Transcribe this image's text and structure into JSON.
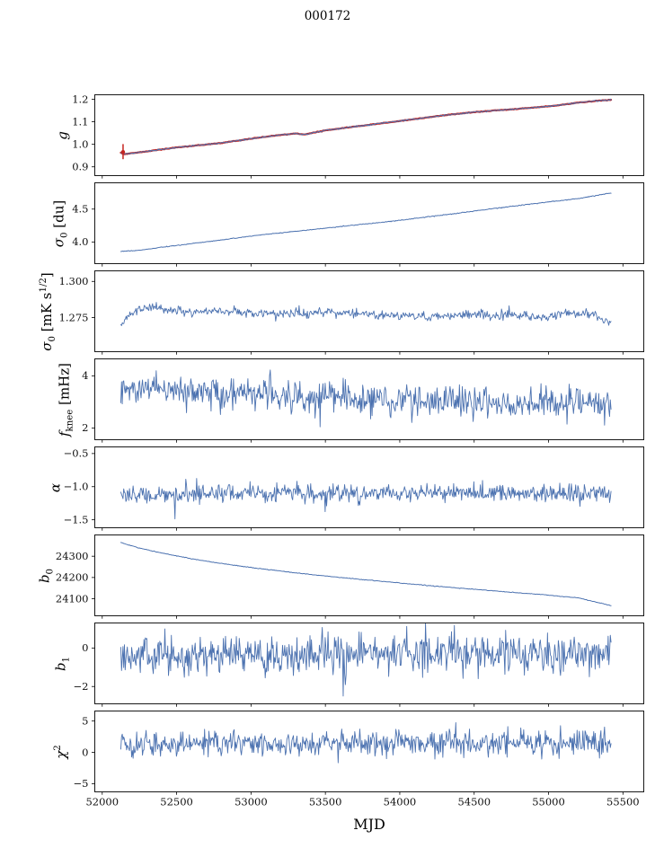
{
  "chart_data": {
    "type": "line",
    "title": "000172",
    "xlabel": "MJD",
    "xlim": [
      51950,
      55640
    ],
    "x_data_range": [
      52125,
      55420
    ],
    "grid": false,
    "legend": "none",
    "colors": {
      "data_line": "#4c72b0",
      "fit_line": "#c62420",
      "axis": "#000000"
    },
    "xticks": [
      {
        "v": 52000,
        "label": "52000"
      },
      {
        "v": 52500,
        "label": "52500"
      },
      {
        "v": 53000,
        "label": "53000"
      },
      {
        "v": 53500,
        "label": "53500"
      },
      {
        "v": 54000,
        "label": "54000"
      },
      {
        "v": 54500,
        "label": "54500"
      },
      {
        "v": 55000,
        "label": "55000"
      },
      {
        "v": 55500,
        "label": "55500"
      }
    ],
    "panels": [
      {
        "name": "g",
        "ylabel_parts": [
          {
            "text": "g",
            "style": "italic"
          }
        ],
        "ylim": [
          0.861,
          1.22
        ],
        "yticks": [
          {
            "v": 0.9,
            "label": "0.9"
          },
          {
            "v": 1.0,
            "label": "1.0"
          },
          {
            "v": 1.1,
            "label": "1.1"
          },
          {
            "v": 1.2,
            "label": "1.2"
          }
        ],
        "series": [
          {
            "name": "gain-fit",
            "color": "#c62420",
            "width": 2.2,
            "seed": 7,
            "n": 450,
            "noise": 0.0006,
            "keypoints": [
              [
                52125,
                0.963
              ],
              [
                52148,
                0.956
              ],
              [
                52175,
                0.959
              ],
              [
                52250,
                0.964
              ],
              [
                52350,
                0.973
              ],
              [
                52500,
                0.986
              ],
              [
                52650,
                0.996
              ],
              [
                52800,
                1.006
              ],
              [
                53000,
                1.025
              ],
              [
                53150,
                1.038
              ],
              [
                53300,
                1.048
              ],
              [
                53360,
                1.044
              ],
              [
                53500,
                1.062
              ],
              [
                53700,
                1.079
              ],
              [
                53900,
                1.095
              ],
              [
                54100,
                1.112
              ],
              [
                54300,
                1.129
              ],
              [
                54500,
                1.143
              ],
              [
                54700,
                1.153
              ],
              [
                54900,
                1.163
              ],
              [
                55050,
                1.172
              ],
              [
                55200,
                1.185
              ],
              [
                55320,
                1.193
              ],
              [
                55420,
                1.1975
              ]
            ]
          },
          {
            "name": "gain-data",
            "color": "#4c72b0",
            "width": 1.0,
            "seed": 8,
            "n": 650,
            "noise": 0.0015,
            "keypoints": [
              [
                52125,
                0.963
              ],
              [
                52148,
                0.956
              ],
              [
                52175,
                0.959
              ],
              [
                52250,
                0.964
              ],
              [
                52350,
                0.973
              ],
              [
                52500,
                0.986
              ],
              [
                52650,
                0.996
              ],
              [
                52800,
                1.006
              ],
              [
                53000,
                1.025
              ],
              [
                53150,
                1.038
              ],
              [
                53300,
                1.048
              ],
              [
                53360,
                1.044
              ],
              [
                53500,
                1.062
              ],
              [
                53700,
                1.079
              ],
              [
                53900,
                1.095
              ],
              [
                54100,
                1.112
              ],
              [
                54300,
                1.129
              ],
              [
                54500,
                1.143
              ],
              [
                54700,
                1.153
              ],
              [
                54900,
                1.163
              ],
              [
                55050,
                1.172
              ],
              [
                55200,
                1.185
              ],
              [
                55320,
                1.193
              ],
              [
                55420,
                1.1975
              ]
            ]
          }
        ],
        "errorbar": {
          "x": 52140,
          "y": 0.966,
          "ylo": 0.934,
          "yhi": 1.001,
          "color": "#c62420"
        }
      },
      {
        "name": "sigma0-du",
        "ylabel_parts": [
          {
            "text": "σ",
            "style": "italic"
          },
          {
            "text": "0",
            "style": "sub"
          },
          {
            "text": " [du]",
            "style": "normal"
          }
        ],
        "ylim": [
          3.67,
          4.9
        ],
        "yticks": [
          {
            "v": 4.0,
            "label": "4.0"
          },
          {
            "v": 4.5,
            "label": "4.5"
          }
        ],
        "series": [
          {
            "name": "sigma0-du",
            "color": "#4c72b0",
            "width": 1.0,
            "seed": 21,
            "n": 600,
            "noise": 0.003,
            "keypoints": [
              [
                52125,
                3.858
              ],
              [
                52250,
                3.872
              ],
              [
                52400,
                3.92
              ],
              [
                52600,
                3.975
              ],
              [
                52800,
                4.03
              ],
              [
                53000,
                4.09
              ],
              [
                53200,
                4.14
              ],
              [
                53400,
                4.185
              ],
              [
                53600,
                4.235
              ],
              [
                53800,
                4.28
              ],
              [
                54000,
                4.33
              ],
              [
                54200,
                4.385
              ],
              [
                54400,
                4.44
              ],
              [
                54600,
                4.5
              ],
              [
                54800,
                4.555
              ],
              [
                55000,
                4.61
              ],
              [
                55200,
                4.66
              ],
              [
                55420,
                4.745
              ]
            ]
          }
        ]
      },
      {
        "name": "sigma0-mks",
        "ylabel_parts": [
          {
            "text": "σ",
            "style": "italic"
          },
          {
            "text": "0",
            "style": "sub"
          },
          {
            "text": " [mK s",
            "style": "normal"
          },
          {
            "text": "1/2",
            "style": "sup"
          },
          {
            "text": "]",
            "style": "normal"
          }
        ],
        "ylim": [
          1.2515,
          1.3073
        ],
        "yticks": [
          {
            "v": 1.275,
            "label": "1.275"
          },
          {
            "v": 1.3,
            "label": "1.300"
          }
        ],
        "series": [
          {
            "name": "sigma0-mks",
            "color": "#4c72b0",
            "width": 0.9,
            "seed": 31,
            "n": 650,
            "noise": 0.0016,
            "spikes": {
              "prob": 0.02,
              "lo": -0.004,
              "hi": 0.004
            },
            "keypoints": [
              [
                52125,
                1.269
              ],
              [
                52160,
                1.2755
              ],
              [
                52220,
                1.28
              ],
              [
                52320,
                1.283
              ],
              [
                52420,
                1.281
              ],
              [
                52550,
                1.279
              ],
              [
                52800,
                1.28
              ],
              [
                53000,
                1.2785
              ],
              [
                53200,
                1.278
              ],
              [
                53500,
                1.279
              ],
              [
                53800,
                1.2775
              ],
              [
                54000,
                1.276
              ],
              [
                54200,
                1.2755
              ],
              [
                54400,
                1.277
              ],
              [
                54700,
                1.2765
              ],
              [
                55000,
                1.2758
              ],
              [
                55150,
                1.2775
              ],
              [
                55300,
                1.277
              ],
              [
                55380,
                1.2725
              ],
              [
                55420,
                1.2715
              ]
            ]
          }
        ]
      },
      {
        "name": "fknee",
        "ylabel_parts": [
          {
            "text": "f",
            "style": "italic"
          },
          {
            "text": "knee",
            "style": "sub"
          },
          {
            "text": " [mHz]",
            "style": "normal"
          }
        ],
        "ylim": [
          1.55,
          4.65
        ],
        "yticks": [
          {
            "v": 2,
            "label": "2"
          },
          {
            "v": 4,
            "label": "4"
          }
        ],
        "series": [
          {
            "name": "fknee",
            "color": "#4c72b0",
            "width": 0.9,
            "seed": 41,
            "n": 680,
            "noise": 0.3,
            "spikes": {
              "prob": 0.03,
              "lo": -0.8,
              "hi": 0.8
            },
            "keypoints": [
              [
                52125,
                3.55
              ],
              [
                52300,
                3.5
              ],
              [
                52500,
                3.42
              ],
              [
                52800,
                3.35
              ],
              [
                53100,
                3.28
              ],
              [
                53400,
                3.22
              ],
              [
                53700,
                3.12
              ],
              [
                54000,
                3.06
              ],
              [
                54300,
                3.02
              ],
              [
                54600,
                2.98
              ],
              [
                54900,
                2.96
              ],
              [
                55200,
                2.95
              ],
              [
                55420,
                2.92
              ]
            ]
          }
        ]
      },
      {
        "name": "alpha",
        "ylabel_parts": [
          {
            "text": "α",
            "style": "italic"
          }
        ],
        "ylim": [
          -1.62,
          -0.4
        ],
        "yticks": [
          {
            "v": -0.5,
            "label": "−0.5"
          },
          {
            "v": -1.0,
            "label": "−1.0"
          },
          {
            "v": -1.5,
            "label": "−1.5"
          }
        ],
        "series": [
          {
            "name": "alpha",
            "color": "#4c72b0",
            "width": 0.9,
            "seed": 51,
            "n": 680,
            "noise": 0.065,
            "spikes": {
              "prob": 0.015,
              "lo": -0.28,
              "hi": 0.22
            },
            "keypoints": [
              [
                52125,
                -1.115
              ],
              [
                53500,
                -1.105
              ],
              [
                55420,
                -1.095
              ]
            ]
          }
        ]
      },
      {
        "name": "b0",
        "ylabel_parts": [
          {
            "text": "b",
            "style": "italic"
          },
          {
            "text": "0",
            "style": "sub"
          }
        ],
        "ylim": [
          24020,
          24400
        ],
        "yticks": [
          {
            "v": 24300,
            "label": "24300"
          },
          {
            "v": 24200,
            "label": "24200"
          },
          {
            "v": 24100,
            "label": "24100"
          }
        ],
        "series": [
          {
            "name": "b0",
            "color": "#4c72b0",
            "width": 1.0,
            "seed": 61,
            "n": 500,
            "noise": 0.8,
            "keypoints": [
              [
                52125,
                24365
              ],
              [
                52250,
                24338
              ],
              [
                52400,
                24315
              ],
              [
                52600,
                24288
              ],
              [
                52800,
                24266
              ],
              [
                53000,
                24247
              ],
              [
                53200,
                24230
              ],
              [
                53400,
                24214
              ],
              [
                53600,
                24200
              ],
              [
                53800,
                24187
              ],
              [
                54000,
                24174
              ],
              [
                54200,
                24162
              ],
              [
                54400,
                24150
              ],
              [
                54600,
                24139
              ],
              [
                54800,
                24128
              ],
              [
                55000,
                24117
              ],
              [
                55200,
                24104
              ],
              [
                55420,
                24068
              ]
            ]
          }
        ]
      },
      {
        "name": "b1",
        "ylabel_parts": [
          {
            "text": "b",
            "style": "italic"
          },
          {
            "text": "1",
            "style": "sub"
          }
        ],
        "ylim": [
          -2.9,
          1.3
        ],
        "yticks": [
          {
            "v": 0,
            "label": "0"
          },
          {
            "v": -2,
            "label": "−2"
          }
        ],
        "series": [
          {
            "name": "b1",
            "color": "#4c72b0",
            "width": 0.9,
            "seed": 71,
            "n": 680,
            "noise": 0.5,
            "spikes": {
              "prob": 0.02,
              "lo": -1.8,
              "hi": 1.0
            },
            "keypoints": [
              [
                52125,
                -0.42
              ],
              [
                53000,
                -0.35
              ],
              [
                54000,
                -0.28
              ],
              [
                55420,
                -0.22
              ]
            ]
          }
        ]
      },
      {
        "name": "chi2",
        "ylabel_parts": [
          {
            "text": "χ",
            "style": "italic"
          },
          {
            "text": "2",
            "style": "sup"
          }
        ],
        "ylim": [
          -6.3,
          6.6
        ],
        "yticks": [
          {
            "v": 5,
            "label": "5"
          },
          {
            "v": 0,
            "label": "0"
          },
          {
            "v": -5,
            "label": "−5"
          }
        ],
        "series": [
          {
            "name": "chi2",
            "color": "#4c72b0",
            "width": 0.9,
            "seed": 81,
            "n": 680,
            "noise": 1.0,
            "spikes": {
              "prob": 0.02,
              "lo": -2.2,
              "hi": 2.2
            },
            "keypoints": [
              [
                52125,
                1.25
              ],
              [
                53500,
                1.45
              ],
              [
                55420,
                1.6
              ]
            ]
          }
        ]
      }
    ]
  }
}
